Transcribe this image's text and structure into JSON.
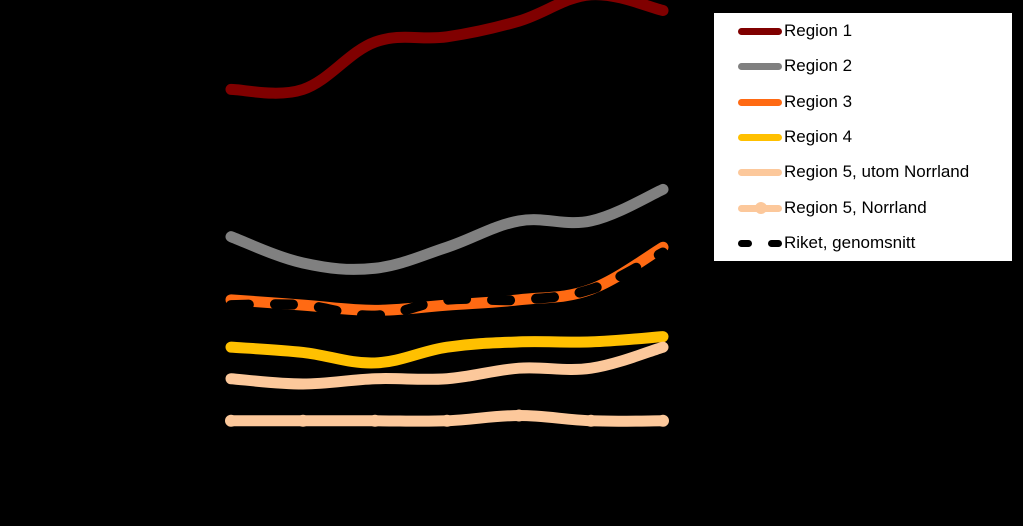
{
  "chart_data": {
    "type": "line",
    "title": "",
    "xlabel": "",
    "ylabel": "",
    "x": [
      1,
      2,
      3,
      4,
      5,
      6,
      7
    ],
    "ylim": [
      0,
      100
    ],
    "grid": false,
    "legend_position": "top-right",
    "series": [
      {
        "name": "Region 1",
        "color": "#800000",
        "style": "solid",
        "values": [
          83,
          83,
          92,
          93,
          96,
          101,
          98
        ]
      },
      {
        "name": "Region 2",
        "color": "#808080",
        "style": "solid",
        "values": [
          55,
          50,
          49,
          53,
          58,
          58,
          64
        ]
      },
      {
        "name": "Region 3",
        "color": "#ff6a13",
        "style": "solid",
        "values": [
          43,
          42,
          41,
          42,
          43,
          45,
          53
        ]
      },
      {
        "name": "Region 4",
        "color": "#ffc000",
        "style": "solid",
        "values": [
          34,
          33,
          31,
          34,
          35,
          35,
          36
        ]
      },
      {
        "name": "Region 5, utom Norrland",
        "color": "#fcc89b",
        "style": "solid",
        "values": [
          28,
          27,
          28,
          28,
          30,
          30,
          34
        ]
      },
      {
        "name": "Region 5, Norrland",
        "color": "#fcc89b",
        "style": "solid-marker",
        "values": [
          20,
          20,
          20,
          20,
          21,
          20,
          20
        ]
      },
      {
        "name": "Riket, genomsnitt",
        "color": "#000000",
        "style": "dashed",
        "values": [
          42,
          42,
          40,
          43,
          43,
          45,
          52
        ]
      }
    ]
  }
}
